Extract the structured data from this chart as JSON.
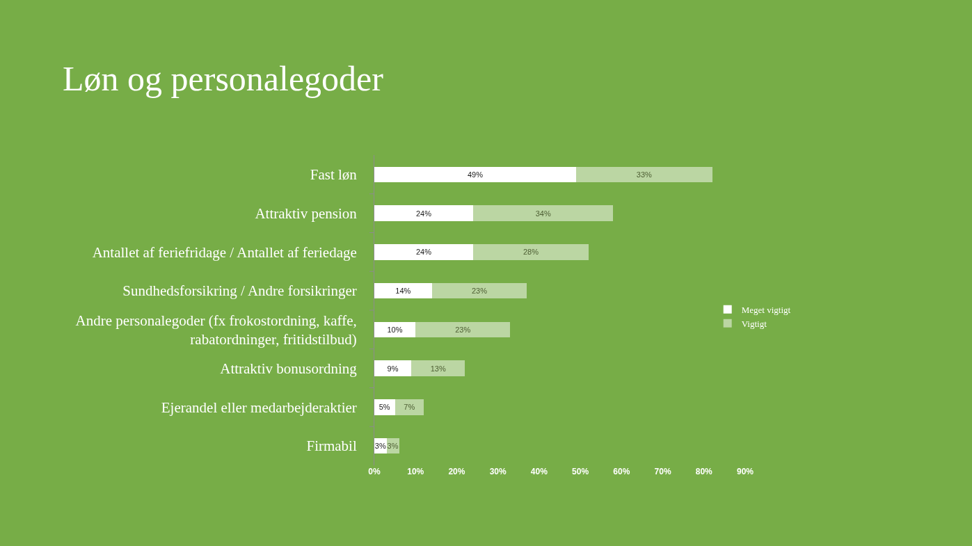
{
  "chart_data": {
    "type": "bar",
    "orientation": "horizontal",
    "stacked": true,
    "title": "Løn og personalegoder",
    "categories": [
      "Fast løn",
      "Attraktiv pension",
      "Antallet af feriefridage / Antallet af feriedage",
      "Sundhedsforsikring / Andre forsikringer",
      "Andre personalegoder (fx frokostordning, kaffe, rabatordninger, fritidstilbud)",
      "Attraktiv bonusordning",
      "Ejerandel eller medarbejderaktier",
      "Firmabil"
    ],
    "series": [
      {
        "name": "Meget vigtigt",
        "color": "#ffffff",
        "values": [
          49,
          24,
          24,
          14,
          10,
          9,
          5,
          3
        ],
        "value_labels": [
          "49%",
          "24%",
          "24%",
          "14%",
          "10%",
          "9%",
          "5%",
          "3%"
        ]
      },
      {
        "name": "Vigtigt",
        "color": "#bbd6a3",
        "values": [
          33,
          34,
          28,
          23,
          23,
          13,
          7,
          3
        ],
        "value_labels": [
          "33%",
          "34%",
          "28%",
          "23%",
          "23%",
          "13%",
          "7%",
          "3%"
        ]
      }
    ],
    "xlim": [
      0,
      90
    ],
    "xticks": [
      {
        "value": 0,
        "label": "0%"
      },
      {
        "value": 10,
        "label": "10%"
      },
      {
        "value": 20,
        "label": "20%"
      },
      {
        "value": 30,
        "label": "30%"
      },
      {
        "value": 40,
        "label": "40%"
      },
      {
        "value": 50,
        "label": "50%"
      },
      {
        "value": 60,
        "label": "60%"
      },
      {
        "value": 70,
        "label": "70%"
      },
      {
        "value": 80,
        "label": "80%"
      },
      {
        "value": 90,
        "label": "90%"
      }
    ],
    "legend": "right"
  }
}
